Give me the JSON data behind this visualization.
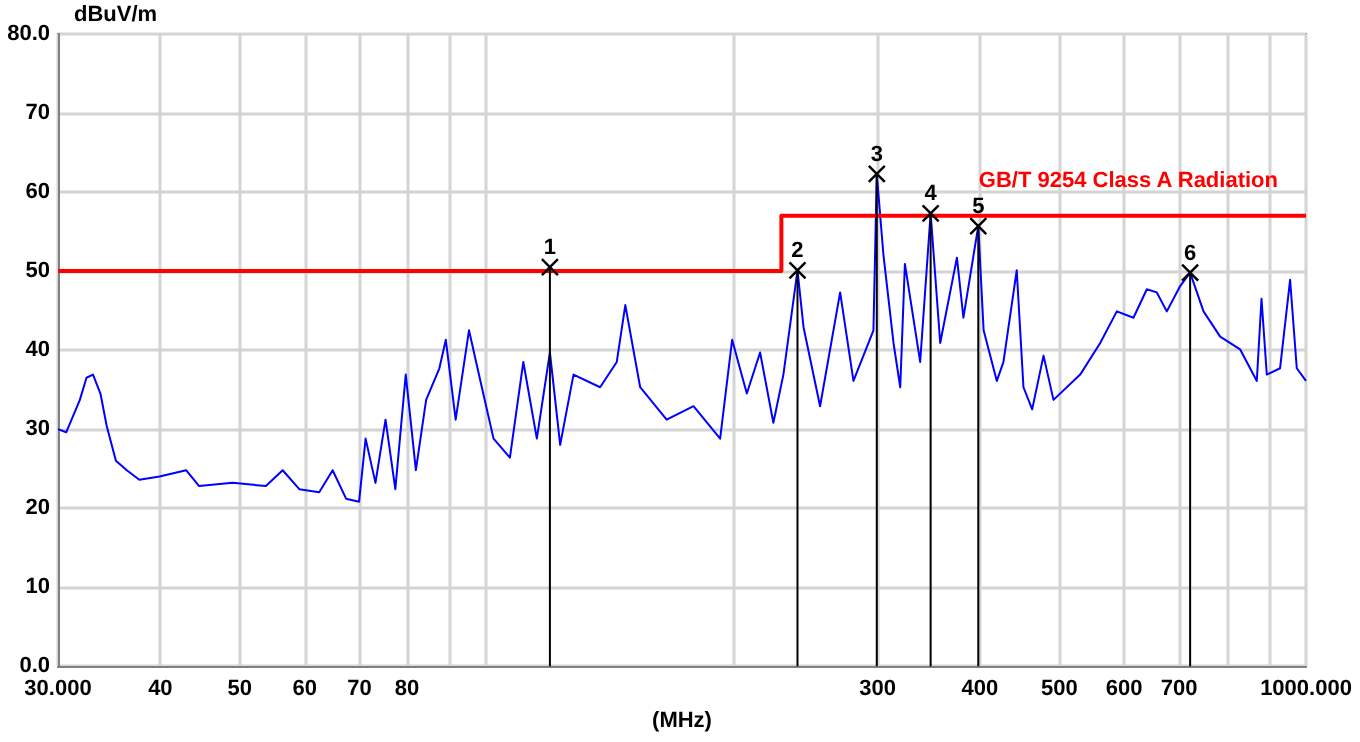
{
  "chart_data": {
    "type": "line",
    "xlabel": "(MHz)",
    "ylabel": "dBuV/m",
    "log": "x",
    "grid": true,
    "xlim": [
      30,
      1000
    ],
    "ylim": [
      0,
      80
    ],
    "xticks": [
      {
        "value": 30,
        "label": "30.000"
      },
      40,
      50,
      60,
      70,
      80,
      {
        "value": 90,
        "label": null
      },
      {
        "value": 100,
        "label": null
      },
      {
        "value": 200,
        "label": null
      },
      300,
      400,
      500,
      600,
      700,
      {
        "value": 800,
        "label": null
      },
      {
        "value": 900,
        "label": null
      },
      {
        "value": 1000,
        "label": "1000.000"
      }
    ],
    "yticks": [
      {
        "value": 0,
        "label": "0.0"
      },
      10,
      20,
      30,
      40,
      50,
      60,
      70,
      {
        "value": 80,
        "label": "80.0"
      }
    ],
    "series": [
      {
        "type": "line",
        "color": "#0000ff",
        "x": [
          30,
          30.7,
          31.9,
          32.5,
          33.1,
          33.8,
          34.4,
          35.3,
          36.4,
          37.7,
          39.9,
          43.0,
          44.6,
          49.0,
          53.8,
          56.4,
          59.1,
          62.5,
          64.9,
          67.4,
          69.9,
          71.2,
          73.2,
          75.3,
          77.4,
          79.7,
          82.0,
          84.4,
          87.6,
          89.2,
          91.7,
          95.2,
          98.3,
          102.0,
          106.8,
          110.9,
          115.2,
          119.5,
          123.0,
          127.7,
          137.6,
          144.2,
          147.7,
          154.0,
          165.9,
          178.9,
          192.8,
          199.4,
          207.8,
          215.7,
          223.9,
          230.3,
          239.6,
          243.7,
          255.3,
          270.1,
          280.4,
          296.6,
          299.4,
          305.0,
          313.8,
          319.8,
          324.0,
          338.2,
          348.3,
          357.8,
          375.0,
          381.9,
          398.2,
          404.2,
          419.5,
          427.4,
          443.6,
          452.1,
          463.3,
          478.3,
          491.9,
          530.2,
          560.9,
          587.7,
          615.8,
          639.4,
          657.6,
          676.3,
          702.2,
          722.1,
          749.8,
          785.7,
          830.9,
          870.9,
          882.5,
          895.7,
          929.7,
          956.3,
          974.4,
          1000
        ],
        "values": [
          30.0,
          29.6,
          33.7,
          36.5,
          36.9,
          34.5,
          30.4,
          26.0,
          24.8,
          23.6,
          24.0,
          24.8,
          22.8,
          23.2,
          22.8,
          24.8,
          22.4,
          22.0,
          24.8,
          21.2,
          20.8,
          28.8,
          23.2,
          31.2,
          22.4,
          36.9,
          24.8,
          33.7,
          37.7,
          41.3,
          31.2,
          42.5,
          36.1,
          28.8,
          26.4,
          38.5,
          28.8,
          39.7,
          28.0,
          36.9,
          35.3,
          38.5,
          45.7,
          35.3,
          31.2,
          32.9,
          28.8,
          41.3,
          34.5,
          39.7,
          30.8,
          36.9,
          50.1,
          42.9,
          32.9,
          47.3,
          36.1,
          42.5,
          62.3,
          52.1,
          40.9,
          35.3,
          50.9,
          38.5,
          57.3,
          40.9,
          51.7,
          44.1,
          55.7,
          42.5,
          36.1,
          38.5,
          50.1,
          35.3,
          32.5,
          39.3,
          33.7,
          36.9,
          40.9,
          44.9,
          44.1,
          47.7,
          47.3,
          44.9,
          48.1,
          49.8,
          44.9,
          41.7,
          40.1,
          36.1,
          46.5,
          36.9,
          37.7,
          48.9,
          37.7,
          36.1
        ]
      },
      {
        "type": "step",
        "name": "GB/T 9254 Class A Radiation",
        "color": "#ff0000",
        "x": [
          30,
          229,
          1000
        ],
        "values": [
          50,
          57,
          57
        ]
      },
      {
        "type": "lollipop",
        "color": "#000000",
        "marker": "cross",
        "x": [
          119.5,
          239.6,
          299.4,
          348.3,
          398.2,
          722.1
        ],
        "values": [
          50.5,
          50.1,
          62.3,
          57.3,
          55.7,
          49.8
        ]
      }
    ],
    "annotations": [
      {
        "text": "1",
        "x": 119.5,
        "y": 50.5
      },
      {
        "text": "2",
        "x": 239.6,
        "y": 50.1
      },
      {
        "text": "3",
        "x": 299.4,
        "y": 62.3
      },
      {
        "text": "4",
        "x": 348.3,
        "y": 57.3
      },
      {
        "text": "5",
        "x": 398.2,
        "y": 55.7
      },
      {
        "text": "6",
        "x": 722.1,
        "y": 49.8
      }
    ]
  }
}
